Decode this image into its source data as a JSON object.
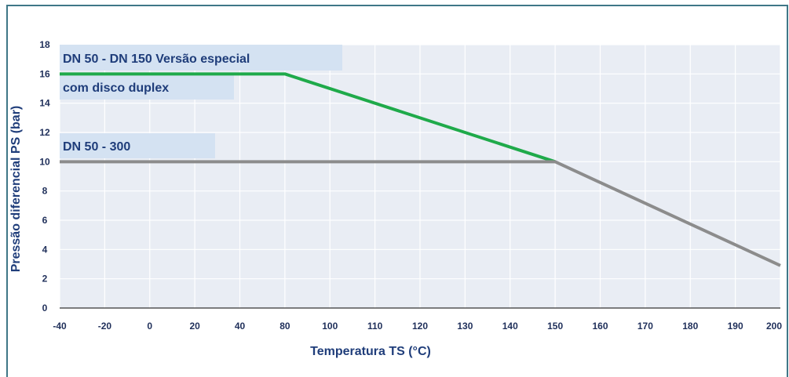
{
  "chart_data": {
    "type": "line",
    "title": "",
    "xlabel": "Temperatura TS (°C)",
    "ylabel": "Pressão diferencial PS (bar)",
    "x_ticks": [
      "-40",
      "-20",
      "0",
      "20",
      "40",
      "80",
      "100",
      "110",
      "120",
      "130",
      "140",
      "150",
      "160",
      "170",
      "180",
      "190",
      "200"
    ],
    "y_ticks": [
      "0",
      "2",
      "4",
      "6",
      "8",
      "10",
      "12",
      "14",
      "16",
      "18"
    ],
    "ylim": [
      0,
      18
    ],
    "grid": true,
    "series": [
      {
        "name": "DN 50 - DN 150 Versão especial com disco duplex",
        "label_lines": [
          "DN 50 - DN 150 Versão especial",
          "com disco duplex"
        ],
        "color": "#1faa4a",
        "points": [
          [
            "-40",
            16
          ],
          [
            "80",
            16
          ],
          [
            "150",
            10
          ]
        ]
      },
      {
        "name": "DN 50 - 300",
        "label_lines": [
          "DN 50 - 300"
        ],
        "color": "#8c8c8c",
        "points": [
          [
            "-40",
            10
          ],
          [
            "150",
            10
          ],
          [
            "200",
            2.9
          ]
        ]
      }
    ],
    "colors": {
      "plot_background": "#e9edf4",
      "grid": "#ffffff",
      "label_background": "#d4e2f2",
      "axis": "#000000"
    }
  }
}
